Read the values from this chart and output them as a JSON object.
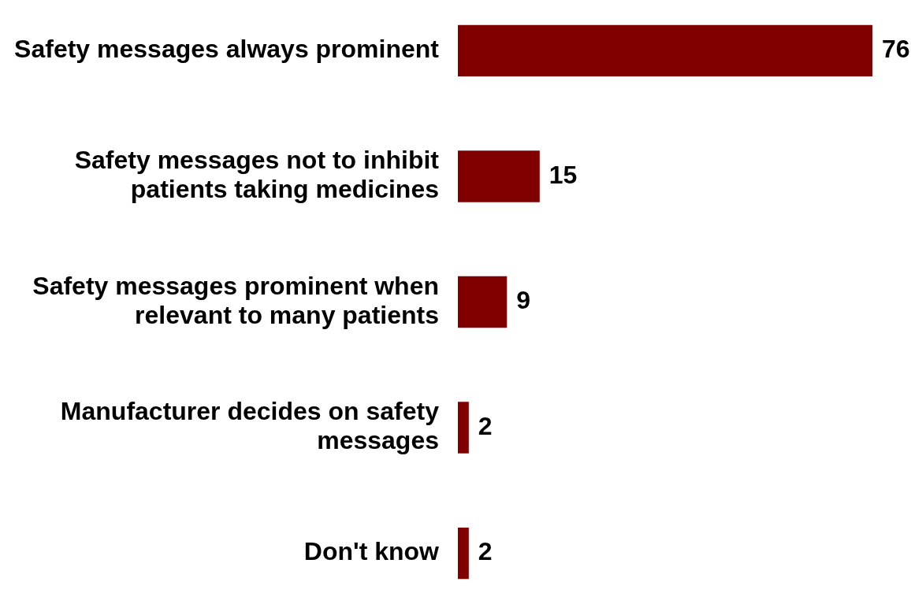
{
  "chart_data": {
    "type": "bar",
    "orientation": "horizontal",
    "categories": [
      "Safety messages always prominent",
      "Safety messages not to inhibit patients taking medicines",
      "Safety messages prominent when relevant to many patients",
      "Manufacturer decides on safety messages",
      "Don't know"
    ],
    "values": [
      76,
      15,
      9,
      2,
      2
    ],
    "color": "#800000",
    "data_labels": true
  }
}
